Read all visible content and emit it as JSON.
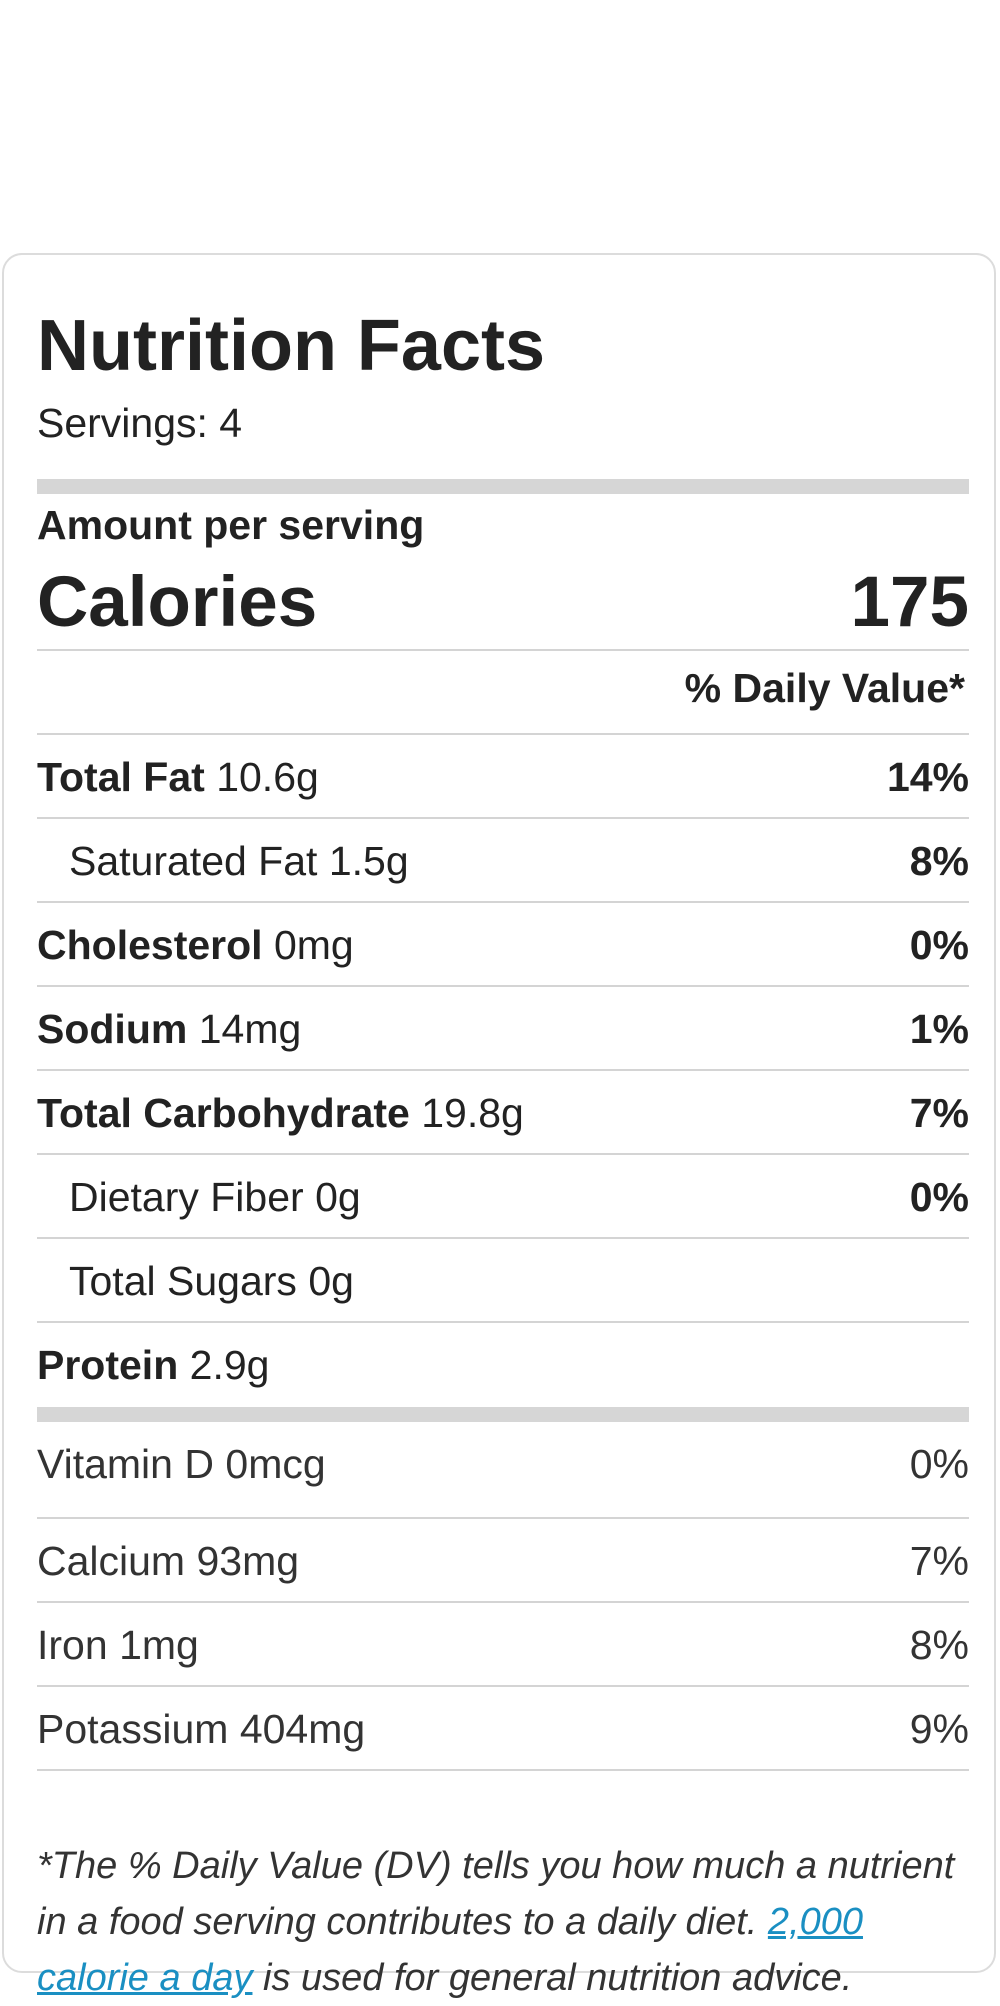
{
  "header": {
    "title": "Nutrition Facts",
    "servings": "Servings: 4"
  },
  "amount_per_serving": "Amount per serving",
  "calories": {
    "label": "Calories",
    "value": "175"
  },
  "daily_value_header": "% Daily Value*",
  "nutrients": [
    {
      "name": "Total Fat",
      "amount": "10.6g",
      "dv": "14%"
    },
    {
      "name": "Saturated Fat",
      "amount": "1.5g",
      "dv": "8%"
    },
    {
      "name": "Cholesterol",
      "amount": "0mg",
      "dv": "0%"
    },
    {
      "name": "Sodium",
      "amount": "14mg",
      "dv": "1%"
    },
    {
      "name": "Total Carbohydrate",
      "amount": "19.8g",
      "dv": "7%"
    },
    {
      "name": "Dietary Fiber",
      "amount": "0g",
      "dv": "0%"
    },
    {
      "name": "Total Sugars",
      "amount": "0g",
      "dv": ""
    },
    {
      "name": "Protein",
      "amount": "2.9g",
      "dv": ""
    }
  ],
  "vitamins": [
    {
      "name": "Vitamin D",
      "amount": "0mcg",
      "dv": "0%"
    },
    {
      "name": "Calcium",
      "amount": "93mg",
      "dv": "7%"
    },
    {
      "name": "Iron",
      "amount": "1mg",
      "dv": "8%"
    },
    {
      "name": "Potassium",
      "amount": "404mg",
      "dv": "9%"
    }
  ],
  "footnote": {
    "text_before": "*The % Daily Value (DV) tells you how much a nutrient in a food serving contributes to a daily diet. ",
    "link_text": "2,000 calorie a day",
    "text_after": " is used for general nutrition advice."
  }
}
